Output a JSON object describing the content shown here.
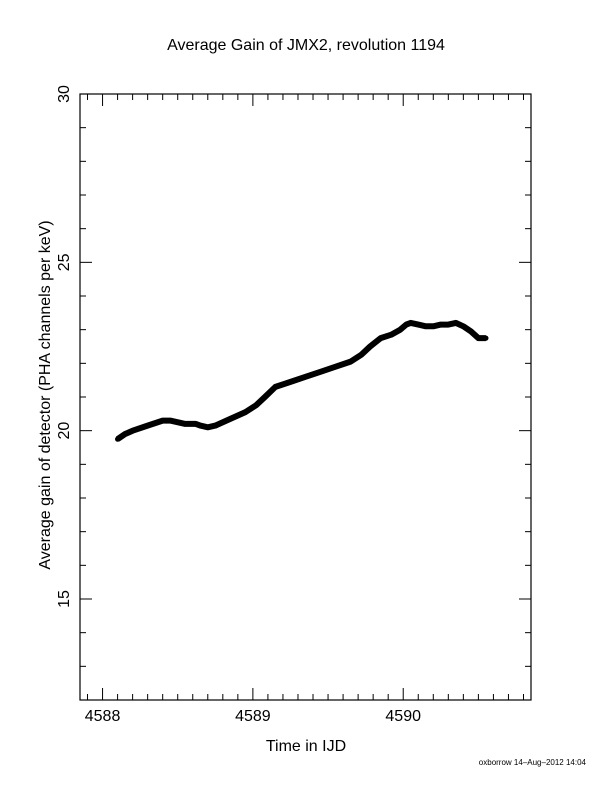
{
  "chart_data": {
    "type": "line",
    "title": "Average Gain of JMX2, revolution 1194",
    "xlabel": "Time in IJD",
    "ylabel": "Average gain of detector (PHA channels per keV)",
    "xlim": [
      4587.85,
      4590.85
    ],
    "ylim": [
      12,
      30
    ],
    "xticks": [
      4588,
      4589,
      4590
    ],
    "yticks": [
      15,
      20,
      25,
      30
    ],
    "grid": false,
    "series": [
      {
        "x": [
          4588.1,
          4588.15,
          4588.2,
          4588.3,
          4588.4,
          4588.45,
          4588.55,
          4588.62,
          4588.65,
          4588.7,
          4588.75,
          4588.85,
          4588.95,
          4589.02,
          4589.08,
          4589.15,
          4589.25,
          4589.35,
          4589.45,
          4589.55,
          4589.65,
          4589.72,
          4589.78,
          4589.85,
          4589.92,
          4589.98,
          4590.02,
          4590.05,
          4590.1,
          4590.15,
          4590.2,
          4590.25,
          4590.3,
          4590.35,
          4590.4,
          4590.45,
          4590.5,
          4590.55
        ],
        "y": [
          19.75,
          19.9,
          20.0,
          20.15,
          20.3,
          20.3,
          20.2,
          20.2,
          20.15,
          20.1,
          20.15,
          20.35,
          20.55,
          20.75,
          21.0,
          21.3,
          21.45,
          21.6,
          21.75,
          21.9,
          22.05,
          22.25,
          22.5,
          22.75,
          22.85,
          23.0,
          23.15,
          23.2,
          23.15,
          23.1,
          23.1,
          23.15,
          23.15,
          23.2,
          23.1,
          22.95,
          22.75,
          22.75
        ]
      }
    ]
  },
  "footer_text": "oxborrow 14–Aug–2012 14:04"
}
